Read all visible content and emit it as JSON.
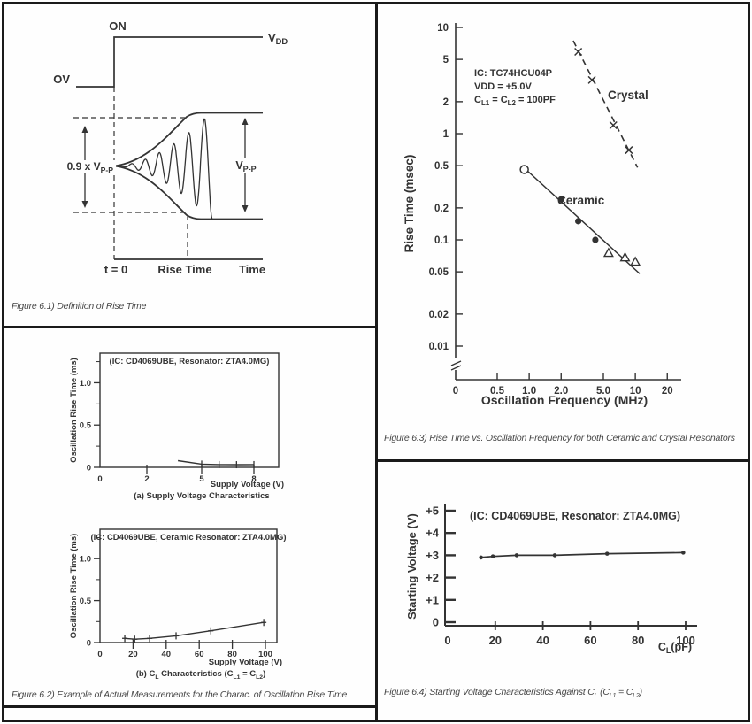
{
  "page": {
    "background": "#fefefe",
    "border_color": "#1a1a1a",
    "ink_color": "#333333",
    "caption_color": "#474747"
  },
  "fig61": {
    "caption": "Figure 6.1) Definition of Rise Time",
    "labels": {
      "on": "ON",
      "ov": "OV",
      "vdd": "V_{DD}",
      "ratio": "0.9 x V_{P-P}",
      "vpp": "V_{P-P}",
      "t0": "t = 0",
      "rise_time": "Rise Time",
      "time": "Time"
    }
  },
  "fig62": {
    "caption": "Figure 6.2) Example of Actual Measurements for the Charac. of Oscillation Rise Time"
  },
  "fig63": {
    "caption": "Figure 6.3) Rise Time vs. Oscillation Frequency for both Ceramic and Crystal Resonators"
  },
  "fig64": {
    "caption": "Figure 6.4) Starting Voltage Characteristics Against C_{L} (C_{L1} = C_{L2})"
  },
  "chart_data": [
    {
      "id": "fig62a",
      "type": "line",
      "title": "(IC: CD4069UBE, Resonator: ZTA4.0MG)",
      "ylabel": "Oscillation Rise Time (ms)",
      "xlabel": "Supply Voltage (V)",
      "subcaption": "(a) Supply Voltage Characteristics",
      "xticks": [
        "0",
        "2",
        "5",
        "8"
      ],
      "yticks": [
        "0",
        "0.5",
        "1.0"
      ],
      "yminor": [
        0.25,
        0.75,
        1.25
      ],
      "ylim": [
        0,
        1.35
      ],
      "grid": false,
      "legend": "none",
      "marker": "tick",
      "marker_indices": [
        1,
        2,
        3,
        4
      ],
      "points": [
        [
          3.7,
          0.078
        ],
        [
          5,
          0.038
        ],
        [
          6,
          0.032
        ],
        [
          7,
          0.031
        ],
        [
          8,
          0.032
        ]
      ]
    },
    {
      "id": "fig62b",
      "type": "line",
      "title": "(IC: CD4069UBE, Ceramic Resonator: ZTA4.0MG)",
      "ylabel": "Oscillation Rise Time (ms)",
      "xlabel": "Supply Voltage (V)",
      "subcaption": "(b) C_{L} Characteristics (C_{L1} = C_{L2})",
      "xticks": [
        "0",
        "20",
        "40",
        "60",
        "80",
        "100"
      ],
      "yticks": [
        "0",
        "0.5",
        "1.0"
      ],
      "yminor": [
        0.25,
        0.75,
        1.25
      ],
      "ylim": [
        0,
        1.35
      ],
      "xlim": [
        0,
        107
      ],
      "grid": false,
      "legend": "none",
      "marker": "plus",
      "points": [
        [
          15,
          0.05
        ],
        [
          21,
          0.04
        ],
        [
          30,
          0.05
        ],
        [
          46,
          0.08
        ],
        [
          67,
          0.14
        ],
        [
          99,
          0.24
        ]
      ]
    },
    {
      "id": "fig63",
      "type": "scatter",
      "xscale": "log",
      "yscale": "log",
      "annotation": [
        "IC: TC74HCU04P",
        "VDD = +5.0V",
        "C_{L1} = C_{L2} = 100PF"
      ],
      "ylabel": "Rise Time (msec)",
      "xlabel": "Oscillation Frequency (MHz)",
      "yticks": [
        "10",
        "5",
        "2",
        "1",
        "0.5",
        "0.2",
        "0.1",
        "0.05",
        "0.02",
        "0.01"
      ],
      "xticks": [
        "0",
        "0.5",
        "1.0",
        "2.0",
        "5.0",
        "10",
        "20"
      ],
      "ylim": [
        0.01,
        10
      ],
      "axis_break_y": true,
      "grid": false,
      "series": [
        {
          "name": "Crystal",
          "line": "dashed",
          "marker": "x",
          "points": [
            [
              2.9,
              5.9
            ],
            [
              3.9,
              3.2
            ],
            [
              6.2,
              1.2
            ],
            [
              8.7,
              0.7
            ]
          ],
          "trend": [
            [
              2.6,
              7.5
            ],
            [
              10.5,
              0.48
            ]
          ]
        },
        {
          "name": "Ceramic",
          "line": "solid",
          "points_open_circle": [
            [
              0.9,
              0.46
            ]
          ],
          "points_dot": [
            [
              2.0,
              0.24
            ],
            [
              2.9,
              0.15
            ],
            [
              4.2,
              0.1
            ]
          ],
          "points_open_triangle": [
            [
              5.6,
              0.075
            ],
            [
              8.0,
              0.068
            ],
            [
              10.0,
              0.062
            ]
          ],
          "trend": [
            [
              0.85,
              0.5
            ],
            [
              11.0,
              0.048
            ]
          ]
        }
      ]
    },
    {
      "id": "fig64",
      "type": "line",
      "title": "(IC: CD4069UBE, Resonator: ZTA4.0MG)",
      "ylabel": "Starting Voltage (V)",
      "xlabel": "C_{L}(pF)",
      "yticks": [
        "0",
        "+1",
        "+2",
        "+3",
        "+4",
        "+5"
      ],
      "xticks": [
        "0",
        "20",
        "40",
        "60",
        "80",
        "100"
      ],
      "ylim": [
        0,
        5.3
      ],
      "xlim": [
        0,
        105
      ],
      "grid": false,
      "marker": "dot",
      "points": [
        [
          14,
          2.9
        ],
        [
          19,
          2.95
        ],
        [
          29,
          3.0
        ],
        [
          45,
          3.0
        ],
        [
          67,
          3.07
        ],
        [
          99,
          3.12
        ]
      ]
    }
  ]
}
